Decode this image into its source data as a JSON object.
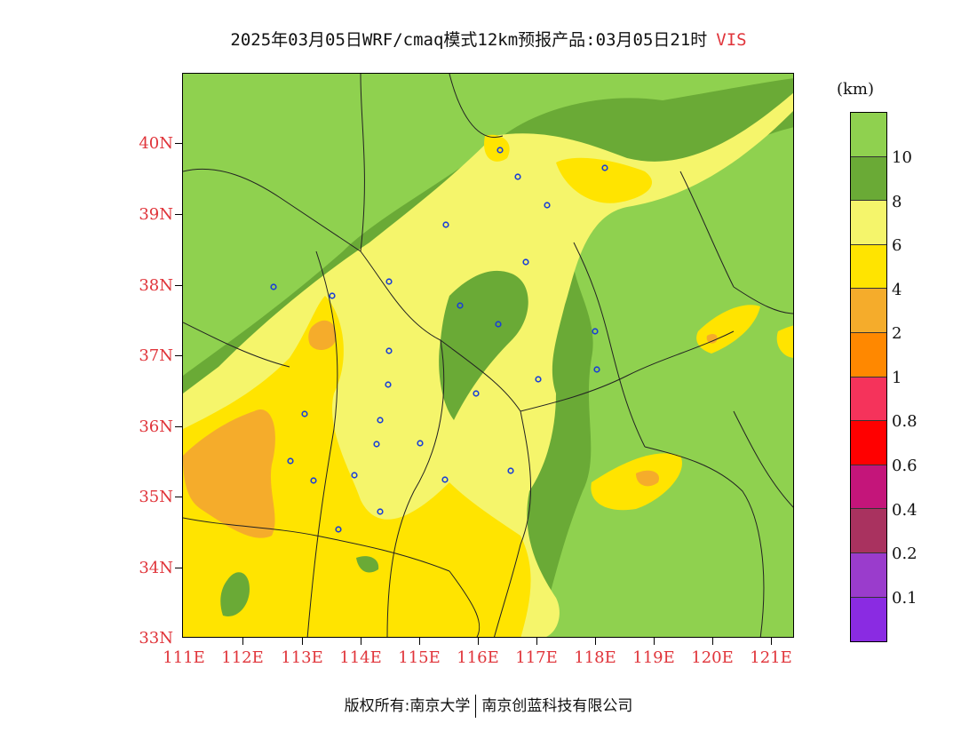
{
  "title": {
    "main": "2025年03月05日WRF/cmaq模式12km预报产品:03月05日21时",
    "variable": "VIS"
  },
  "axes": {
    "lat_labels": [
      "40N",
      "39N",
      "38N",
      "37N",
      "36N",
      "35N",
      "34N",
      "33N"
    ],
    "lon_labels": [
      "111E",
      "112E",
      "113E",
      "114E",
      "115E",
      "116E",
      "117E",
      "118E",
      "119E",
      "120E",
      "121E"
    ]
  },
  "colorbar": {
    "units": "(km)",
    "labels": [
      "10",
      "8",
      "6",
      "4",
      "2",
      "1",
      "0.8",
      "0.6",
      "0.4",
      "0.2",
      "0.1"
    ],
    "colors": [
      "#8fd14f",
      "#6aaa36",
      "#f5f56b",
      "#ffe400",
      "#f5ac2b",
      "#ff8800",
      "#f5335b",
      "#ff0000",
      "#c4157a",
      "#a9325f",
      "#9a3ccc",
      "#8a2be2"
    ]
  },
  "footer": {
    "left": "版权所有:南京大学",
    "right": "南京创蓝科技有限公司"
  }
}
